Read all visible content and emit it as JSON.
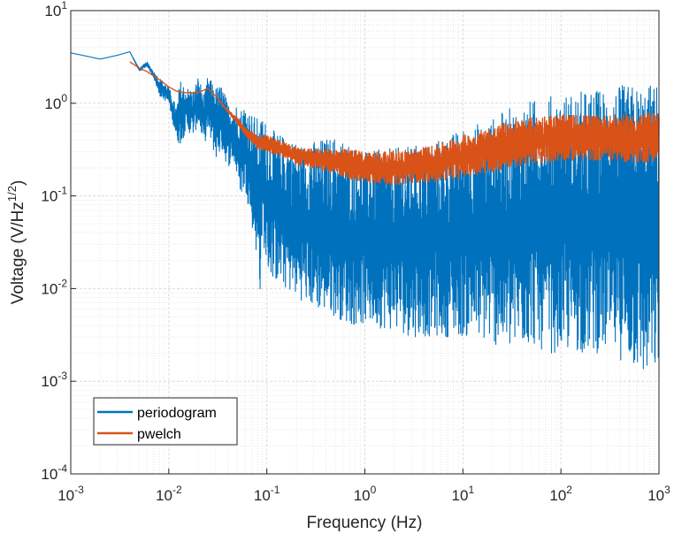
{
  "chart_data": {
    "type": "line",
    "xlabel": "Frequency (Hz)",
    "ylabel": "Voltage (V/Hz",
    "ylabel_exponent": "1/2",
    "ylabel_suffix": ")",
    "xscale": "log",
    "yscale": "log",
    "xlim": [
      0.001,
      1000
    ],
    "ylim": [
      0.0001,
      10
    ],
    "grid": true,
    "minor_grid": true,
    "legend_position": "bottom-left",
    "xticks": [
      {
        "base": "10",
        "exp": "-3",
        "value": 0.001
      },
      {
        "base": "10",
        "exp": "-2",
        "value": 0.01
      },
      {
        "base": "10",
        "exp": "-1",
        "value": 0.1
      },
      {
        "base": "10",
        "exp": "0",
        "value": 1
      },
      {
        "base": "10",
        "exp": "1",
        "value": 10
      },
      {
        "base": "10",
        "exp": "2",
        "value": 100
      },
      {
        "base": "10",
        "exp": "3",
        "value": 1000
      }
    ],
    "yticks": [
      {
        "base": "10",
        "exp": "-4",
        "value": 0.0001
      },
      {
        "base": "10",
        "exp": "-3",
        "value": 0.001
      },
      {
        "base": "10",
        "exp": "-2",
        "value": 0.01
      },
      {
        "base": "10",
        "exp": "-1",
        "value": 0.1
      },
      {
        "base": "10",
        "exp": "0",
        "value": 1
      },
      {
        "base": "10",
        "exp": "1",
        "value": 10
      }
    ],
    "series": [
      {
        "name": "periodogram",
        "color": "#0072BD",
        "x": [
          0.001,
          0.002,
          0.003,
          0.004,
          0.005,
          0.006,
          0.007,
          0.008,
          0.01,
          0.012,
          0.013,
          0.015,
          0.018,
          0.02,
          0.023,
          0.025,
          0.03,
          0.035,
          0.04,
          0.045,
          0.05,
          0.055,
          0.06,
          0.07,
          0.08,
          0.085,
          0.09,
          0.1,
          0.12,
          0.15,
          0.2,
          0.25,
          0.3,
          0.5,
          0.7,
          1,
          2,
          3,
          5,
          7,
          10,
          20,
          30,
          50,
          70,
          100,
          200,
          300,
          500,
          700,
          1000
        ],
        "upper": [
          3.5,
          3.0,
          3.3,
          3.6,
          2.4,
          2.8,
          2.2,
          1.9,
          1.5,
          0.9,
          1.8,
          1.5,
          1.4,
          2.0,
          1.2,
          2.0,
          1.5,
          1.6,
          1.0,
          0.9,
          1.0,
          0.9,
          1.0,
          0.8,
          0.7,
          0.6,
          0.8,
          0.6,
          0.5,
          0.45,
          0.4,
          0.35,
          0.4,
          0.45,
          0.4,
          0.3,
          0.33,
          0.35,
          0.4,
          0.45,
          0.55,
          0.7,
          0.9,
          1.1,
          1.2,
          1.3,
          1.4,
          1.5,
          1.6,
          1.6,
          1.7
        ],
        "lower": [
          3.5,
          3.0,
          3.3,
          3.6,
          2.2,
          2.5,
          1.9,
          1.2,
          1.0,
          0.4,
          0.35,
          0.5,
          0.45,
          0.6,
          0.35,
          0.5,
          0.25,
          0.3,
          0.2,
          0.25,
          0.15,
          0.1,
          0.12,
          0.05,
          0.02,
          0.008,
          0.04,
          0.015,
          0.012,
          0.01,
          0.008,
          0.007,
          0.006,
          0.005,
          0.004,
          0.004,
          0.0035,
          0.003,
          0.003,
          0.003,
          0.003,
          0.0025,
          0.002,
          0.0025,
          0.002,
          0.002,
          0.002,
          0.002,
          0.0015,
          0.001,
          0.0012
        ]
      },
      {
        "name": "pwelch",
        "color": "#D95319",
        "x": [
          0.004,
          0.005,
          0.006,
          0.008,
          0.01,
          0.012,
          0.015,
          0.02,
          0.025,
          0.03,
          0.04,
          0.05,
          0.06,
          0.08,
          0.1,
          0.15,
          0.2,
          0.3,
          0.5,
          0.7,
          1,
          2,
          3,
          5,
          7,
          10,
          20,
          30,
          50,
          70,
          100,
          200,
          300,
          500,
          700,
          1000
        ],
        "upper": [
          2.8,
          2.4,
          2.2,
          1.8,
          1.5,
          1.35,
          1.3,
          1.3,
          1.45,
          1.2,
          0.85,
          0.7,
          0.55,
          0.45,
          0.45,
          0.38,
          0.33,
          0.32,
          0.32,
          0.32,
          0.3,
          0.31,
          0.32,
          0.35,
          0.4,
          0.45,
          0.55,
          0.65,
          0.7,
          0.75,
          0.75,
          0.75,
          0.75,
          0.75,
          0.78,
          0.8
        ],
        "lower": [
          2.8,
          2.4,
          2.2,
          1.8,
          1.5,
          1.35,
          1.3,
          1.3,
          1.45,
          1.2,
          0.8,
          0.6,
          0.45,
          0.32,
          0.3,
          0.26,
          0.22,
          0.2,
          0.17,
          0.15,
          0.14,
          0.13,
          0.14,
          0.14,
          0.15,
          0.16,
          0.18,
          0.2,
          0.22,
          0.23,
          0.24,
          0.24,
          0.24,
          0.23,
          0.23,
          0.24
        ]
      }
    ]
  }
}
